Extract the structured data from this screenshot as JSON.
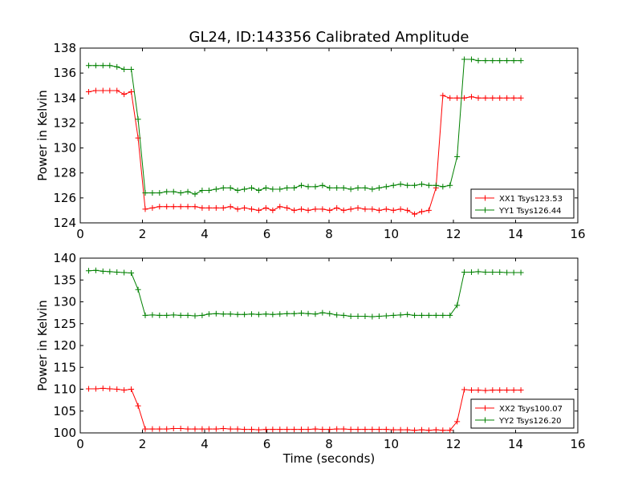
{
  "chart_data": [
    {
      "type": "line",
      "title": "GL24, ID:143356 Calibrated Amplitude",
      "xlabel": "",
      "ylabel": "Power in Kelvin",
      "xlim": [
        0,
        16
      ],
      "ylim": [
        124,
        138
      ],
      "xticks": [
        "0",
        "2",
        "4",
        "6",
        "8",
        "10",
        "12",
        "14",
        "16"
      ],
      "yticks": [
        "124",
        "126",
        "128",
        "130",
        "132",
        "134",
        "136",
        "138"
      ],
      "grid": false,
      "legend_position": "lower-right",
      "series": [
        {
          "name": "XX1 Tsys123.53",
          "color": "#ff0000",
          "x": [
            0.27,
            0.5,
            0.73,
            0.95,
            1.18,
            1.41,
            1.64,
            1.86,
            2.09,
            2.32,
            2.55,
            2.78,
            3.0,
            3.23,
            3.46,
            3.69,
            3.92,
            4.14,
            4.37,
            4.6,
            4.83,
            5.06,
            5.28,
            5.51,
            5.74,
            5.97,
            6.19,
            6.42,
            6.65,
            6.88,
            7.11,
            7.33,
            7.56,
            7.79,
            8.02,
            8.25,
            8.47,
            8.7,
            8.93,
            9.16,
            9.39,
            9.61,
            9.84,
            10.07,
            10.3,
            10.52,
            10.75,
            10.98,
            11.21,
            11.44,
            11.66,
            11.89,
            12.12,
            12.35,
            12.58,
            12.8,
            13.03,
            13.26,
            13.49,
            13.72,
            13.94,
            14.17
          ],
          "values": [
            134.5,
            134.6,
            134.6,
            134.6,
            134.6,
            134.3,
            134.5,
            130.8,
            125.1,
            125.2,
            125.3,
            125.3,
            125.3,
            125.3,
            125.3,
            125.3,
            125.2,
            125.2,
            125.2,
            125.2,
            125.3,
            125.1,
            125.2,
            125.1,
            125.0,
            125.2,
            125.0,
            125.3,
            125.2,
            125.0,
            125.1,
            125.0,
            125.1,
            125.1,
            125.0,
            125.2,
            125.0,
            125.1,
            125.2,
            125.1,
            125.1,
            125.0,
            125.1,
            125.0,
            125.1,
            125.0,
            124.7,
            124.9,
            125.0,
            126.8,
            134.2,
            134.0,
            134.0,
            134.0,
            134.1,
            134.0,
            134.0,
            134.0,
            134.0,
            134.0,
            134.0,
            134.0
          ]
        },
        {
          "name": "YY1 Tsys126.44",
          "color": "#008000",
          "x": [
            0.27,
            0.5,
            0.73,
            0.95,
            1.18,
            1.41,
            1.64,
            1.86,
            2.09,
            2.32,
            2.55,
            2.78,
            3.0,
            3.23,
            3.46,
            3.69,
            3.92,
            4.14,
            4.37,
            4.6,
            4.83,
            5.06,
            5.28,
            5.51,
            5.74,
            5.97,
            6.19,
            6.42,
            6.65,
            6.88,
            7.11,
            7.33,
            7.56,
            7.79,
            8.02,
            8.25,
            8.47,
            8.7,
            8.93,
            9.16,
            9.39,
            9.61,
            9.84,
            10.07,
            10.3,
            10.52,
            10.75,
            10.98,
            11.21,
            11.44,
            11.66,
            11.89,
            12.12,
            12.35,
            12.58,
            12.8,
            13.03,
            13.26,
            13.49,
            13.72,
            13.94,
            14.17
          ],
          "values": [
            136.6,
            136.6,
            136.6,
            136.6,
            136.5,
            136.3,
            136.3,
            132.3,
            126.4,
            126.4,
            126.4,
            126.5,
            126.5,
            126.4,
            126.5,
            126.3,
            126.6,
            126.6,
            126.7,
            126.8,
            126.8,
            126.6,
            126.7,
            126.8,
            126.6,
            126.8,
            126.7,
            126.7,
            126.8,
            126.8,
            127.0,
            126.9,
            126.9,
            127.0,
            126.8,
            126.8,
            126.8,
            126.7,
            126.8,
            126.8,
            126.7,
            126.8,
            126.9,
            127.0,
            127.1,
            127.0,
            127.0,
            127.1,
            127.0,
            127.0,
            126.9,
            127.0,
            129.3,
            137.1,
            137.1,
            137.0,
            137.0,
            137.0,
            137.0,
            137.0,
            137.0,
            137.0
          ]
        }
      ]
    },
    {
      "type": "line",
      "title": "",
      "xlabel": "Time (seconds)",
      "ylabel": "Power in Kelvin",
      "xlim": [
        0,
        16
      ],
      "ylim": [
        100,
        140
      ],
      "xticks": [
        "0",
        "2",
        "4",
        "6",
        "8",
        "10",
        "12",
        "14",
        "16"
      ],
      "yticks": [
        "100",
        "105",
        "110",
        "115",
        "120",
        "125",
        "130",
        "135",
        "140"
      ],
      "grid": false,
      "legend_position": "lower-right",
      "series": [
        {
          "name": "XX2 Tsys100.07",
          "color": "#ff0000",
          "x": [
            0.27,
            0.5,
            0.73,
            0.95,
            1.18,
            1.41,
            1.64,
            1.86,
            2.09,
            2.32,
            2.55,
            2.78,
            3.0,
            3.23,
            3.46,
            3.69,
            3.92,
            4.14,
            4.37,
            4.6,
            4.83,
            5.06,
            5.28,
            5.51,
            5.74,
            5.97,
            6.19,
            6.42,
            6.65,
            6.88,
            7.11,
            7.33,
            7.56,
            7.79,
            8.02,
            8.25,
            8.47,
            8.7,
            8.93,
            9.16,
            9.39,
            9.61,
            9.84,
            10.07,
            10.3,
            10.52,
            10.75,
            10.98,
            11.21,
            11.44,
            11.66,
            11.89,
            12.12,
            12.35,
            12.58,
            12.8,
            13.03,
            13.26,
            13.49,
            13.72,
            13.94,
            14.17
          ],
          "values": [
            110.1,
            110.1,
            110.2,
            110.1,
            110.0,
            109.8,
            110.0,
            106.2,
            100.9,
            100.9,
            100.9,
            100.9,
            101.0,
            101.0,
            100.9,
            100.9,
            100.9,
            100.9,
            100.9,
            101.0,
            100.9,
            100.9,
            100.8,
            100.8,
            100.7,
            100.8,
            100.8,
            100.8,
            100.8,
            100.8,
            100.8,
            100.8,
            100.9,
            100.8,
            100.8,
            100.9,
            100.9,
            100.8,
            100.8,
            100.8,
            100.8,
            100.8,
            100.8,
            100.7,
            100.7,
            100.7,
            100.6,
            100.7,
            100.6,
            100.7,
            100.6,
            100.6,
            102.6,
            109.9,
            109.8,
            109.8,
            109.7,
            109.8,
            109.8,
            109.8,
            109.8,
            109.8
          ]
        },
        {
          "name": "YY2 Tsys126.20",
          "color": "#008000",
          "x": [
            0.27,
            0.5,
            0.73,
            0.95,
            1.18,
            1.41,
            1.64,
            1.86,
            2.09,
            2.32,
            2.55,
            2.78,
            3.0,
            3.23,
            3.46,
            3.69,
            3.92,
            4.14,
            4.37,
            4.6,
            4.83,
            5.06,
            5.28,
            5.51,
            5.74,
            5.97,
            6.19,
            6.42,
            6.65,
            6.88,
            7.11,
            7.33,
            7.56,
            7.79,
            8.02,
            8.25,
            8.47,
            8.7,
            8.93,
            9.16,
            9.39,
            9.61,
            9.84,
            10.07,
            10.3,
            10.52,
            10.75,
            10.98,
            11.21,
            11.44,
            11.66,
            11.89,
            12.12,
            12.35,
            12.58,
            12.8,
            13.03,
            13.26,
            13.49,
            13.72,
            13.94,
            14.17
          ],
          "values": [
            137.1,
            137.2,
            137.0,
            136.9,
            136.8,
            136.7,
            136.6,
            132.8,
            126.9,
            127.0,
            126.9,
            126.9,
            127.0,
            126.9,
            126.9,
            126.8,
            126.9,
            127.2,
            127.3,
            127.2,
            127.2,
            127.1,
            127.1,
            127.2,
            127.1,
            127.2,
            127.1,
            127.2,
            127.3,
            127.3,
            127.4,
            127.3,
            127.2,
            127.5,
            127.3,
            127.0,
            126.9,
            126.7,
            126.7,
            126.7,
            126.6,
            126.7,
            126.8,
            126.9,
            127.0,
            127.1,
            126.9,
            126.9,
            126.9,
            126.9,
            126.9,
            126.9,
            129.2,
            136.8,
            136.8,
            136.9,
            136.8,
            136.8,
            136.8,
            136.7,
            136.7,
            136.7
          ]
        }
      ]
    }
  ]
}
